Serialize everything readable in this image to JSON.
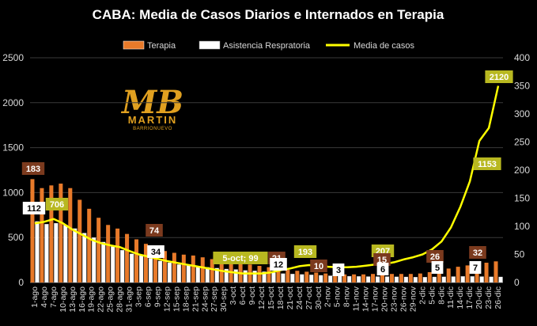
{
  "chart_data": {
    "type": "bar",
    "title": "CABA: Media de Casos Diarios e Internados en Terapia",
    "categories": [
      "1-ago",
      "4-ago",
      "7-ago",
      "10-ago",
      "13-ago",
      "16-ago",
      "19-ago",
      "22-ago",
      "25-ago",
      "28-ago",
      "31-ago",
      "3-sep",
      "6-sep",
      "9-sep",
      "12-sep",
      "15-sep",
      "18-sep",
      "21-sep",
      "24-sep",
      "27-sep",
      "30-sep",
      "3-oct",
      "6-oct",
      "9-oct",
      "12-oct",
      "15-oct",
      "18-oct",
      "21-oct",
      "24-oct",
      "27-oct",
      "30-oct",
      "2-nov",
      "5-nov",
      "8-nov",
      "11-nov",
      "14-nov",
      "17-nov",
      "20-nov",
      "23-nov",
      "26-nov",
      "29-nov",
      "2-dic",
      "5-dic",
      "8-dic",
      "11-dic",
      "14-dic",
      "17-dic",
      "20-dic",
      "23-dic",
      "26-dic"
    ],
    "left_axis": {
      "min": 0,
      "max": 2500,
      "ticks": [
        0,
        500,
        1000,
        1500,
        2000,
        2500
      ]
    },
    "right_axis": {
      "min": 0,
      "max": 400,
      "ticks": [
        0,
        50,
        100,
        150,
        200,
        250,
        300,
        350,
        400
      ]
    },
    "grid": true,
    "legend_position": "top",
    "series": [
      {
        "name": "Terapia",
        "axis": "left",
        "color": "#e87a2a",
        "values": [
          1150,
          1050,
          1080,
          1100,
          1050,
          920,
          820,
          720,
          640,
          600,
          540,
          480,
          430,
          380,
          350,
          330,
          310,
          300,
          280,
          260,
          240,
          230,
          210,
          200,
          185,
          170,
          150,
          140,
          130,
          120,
          110,
          100,
          95,
          90,
          90,
          90,
          95,
          100,
          95,
          95,
          95,
          100,
          115,
          130,
          155,
          175,
          190,
          205,
          220,
          235
        ]
      },
      {
        "name": "Asistencia Respratoria",
        "axis": "left",
        "color": "#ffffff",
        "values": [
          680,
          650,
          660,
          640,
          600,
          550,
          500,
          450,
          400,
          360,
          320,
          300,
          270,
          240,
          220,
          200,
          190,
          180,
          170,
          160,
          150,
          145,
          135,
          130,
          120,
          110,
          100,
          95,
          90,
          85,
          80,
          75,
          72,
          70,
          68,
          66,
          66,
          66,
          64,
          62,
          60,
          60,
          62,
          64,
          66,
          68,
          68,
          66,
          64,
          62
        ]
      },
      {
        "name": "Media de casos",
        "axis": "right",
        "color": "#ffff00",
        "values": [
          105,
          108,
          113,
          105,
          94,
          85,
          76,
          70,
          66,
          63,
          56,
          50,
          46,
          42,
          38,
          35,
          32,
          29,
          26,
          23,
          20,
          18,
          16,
          16,
          16,
          18,
          22,
          25,
          29,
          31,
          30,
          28,
          27,
          27,
          28,
          30,
          32,
          33,
          36,
          41,
          45,
          50,
          59,
          73,
          98,
          135,
          180,
          252,
          275,
          350
        ]
      }
    ],
    "annotations": [
      {
        "label": "183",
        "color": "#7b3a1e"
      },
      {
        "label": "112",
        "color": "#ffffff"
      },
      {
        "label": "706",
        "color": "#b8b820"
      },
      {
        "label": "74",
        "color": "#7b3a1e"
      },
      {
        "label": "34",
        "color": "#ffffff"
      },
      {
        "label": "5-oct; 99",
        "color": "#b8b820"
      },
      {
        "label": "21",
        "color": "#7b3a1e"
      },
      {
        "label": "12",
        "color": "#ffffff"
      },
      {
        "label": "193",
        "color": "#b8b820"
      },
      {
        "label": "10",
        "color": "#7b3a1e"
      },
      {
        "label": "3",
        "color": "#ffffff"
      },
      {
        "label": "207",
        "color": "#b8b820"
      },
      {
        "label": "15",
        "color": "#7b3a1e"
      },
      {
        "label": "6",
        "color": "#ffffff"
      },
      {
        "label": "26",
        "color": "#7b3a1e"
      },
      {
        "label": "5",
        "color": "#ffffff"
      },
      {
        "label": "32",
        "color": "#7b3a1e"
      },
      {
        "label": "7",
        "color": "#ffffff"
      },
      {
        "label": "1153",
        "color": "#b8b820"
      },
      {
        "label": "2120",
        "color": "#b8b820"
      }
    ]
  },
  "logo": {
    "mark": "MB",
    "line1": "MARTIN",
    "line2": "BARRIONUEVO",
    "color": "#e0a020"
  }
}
